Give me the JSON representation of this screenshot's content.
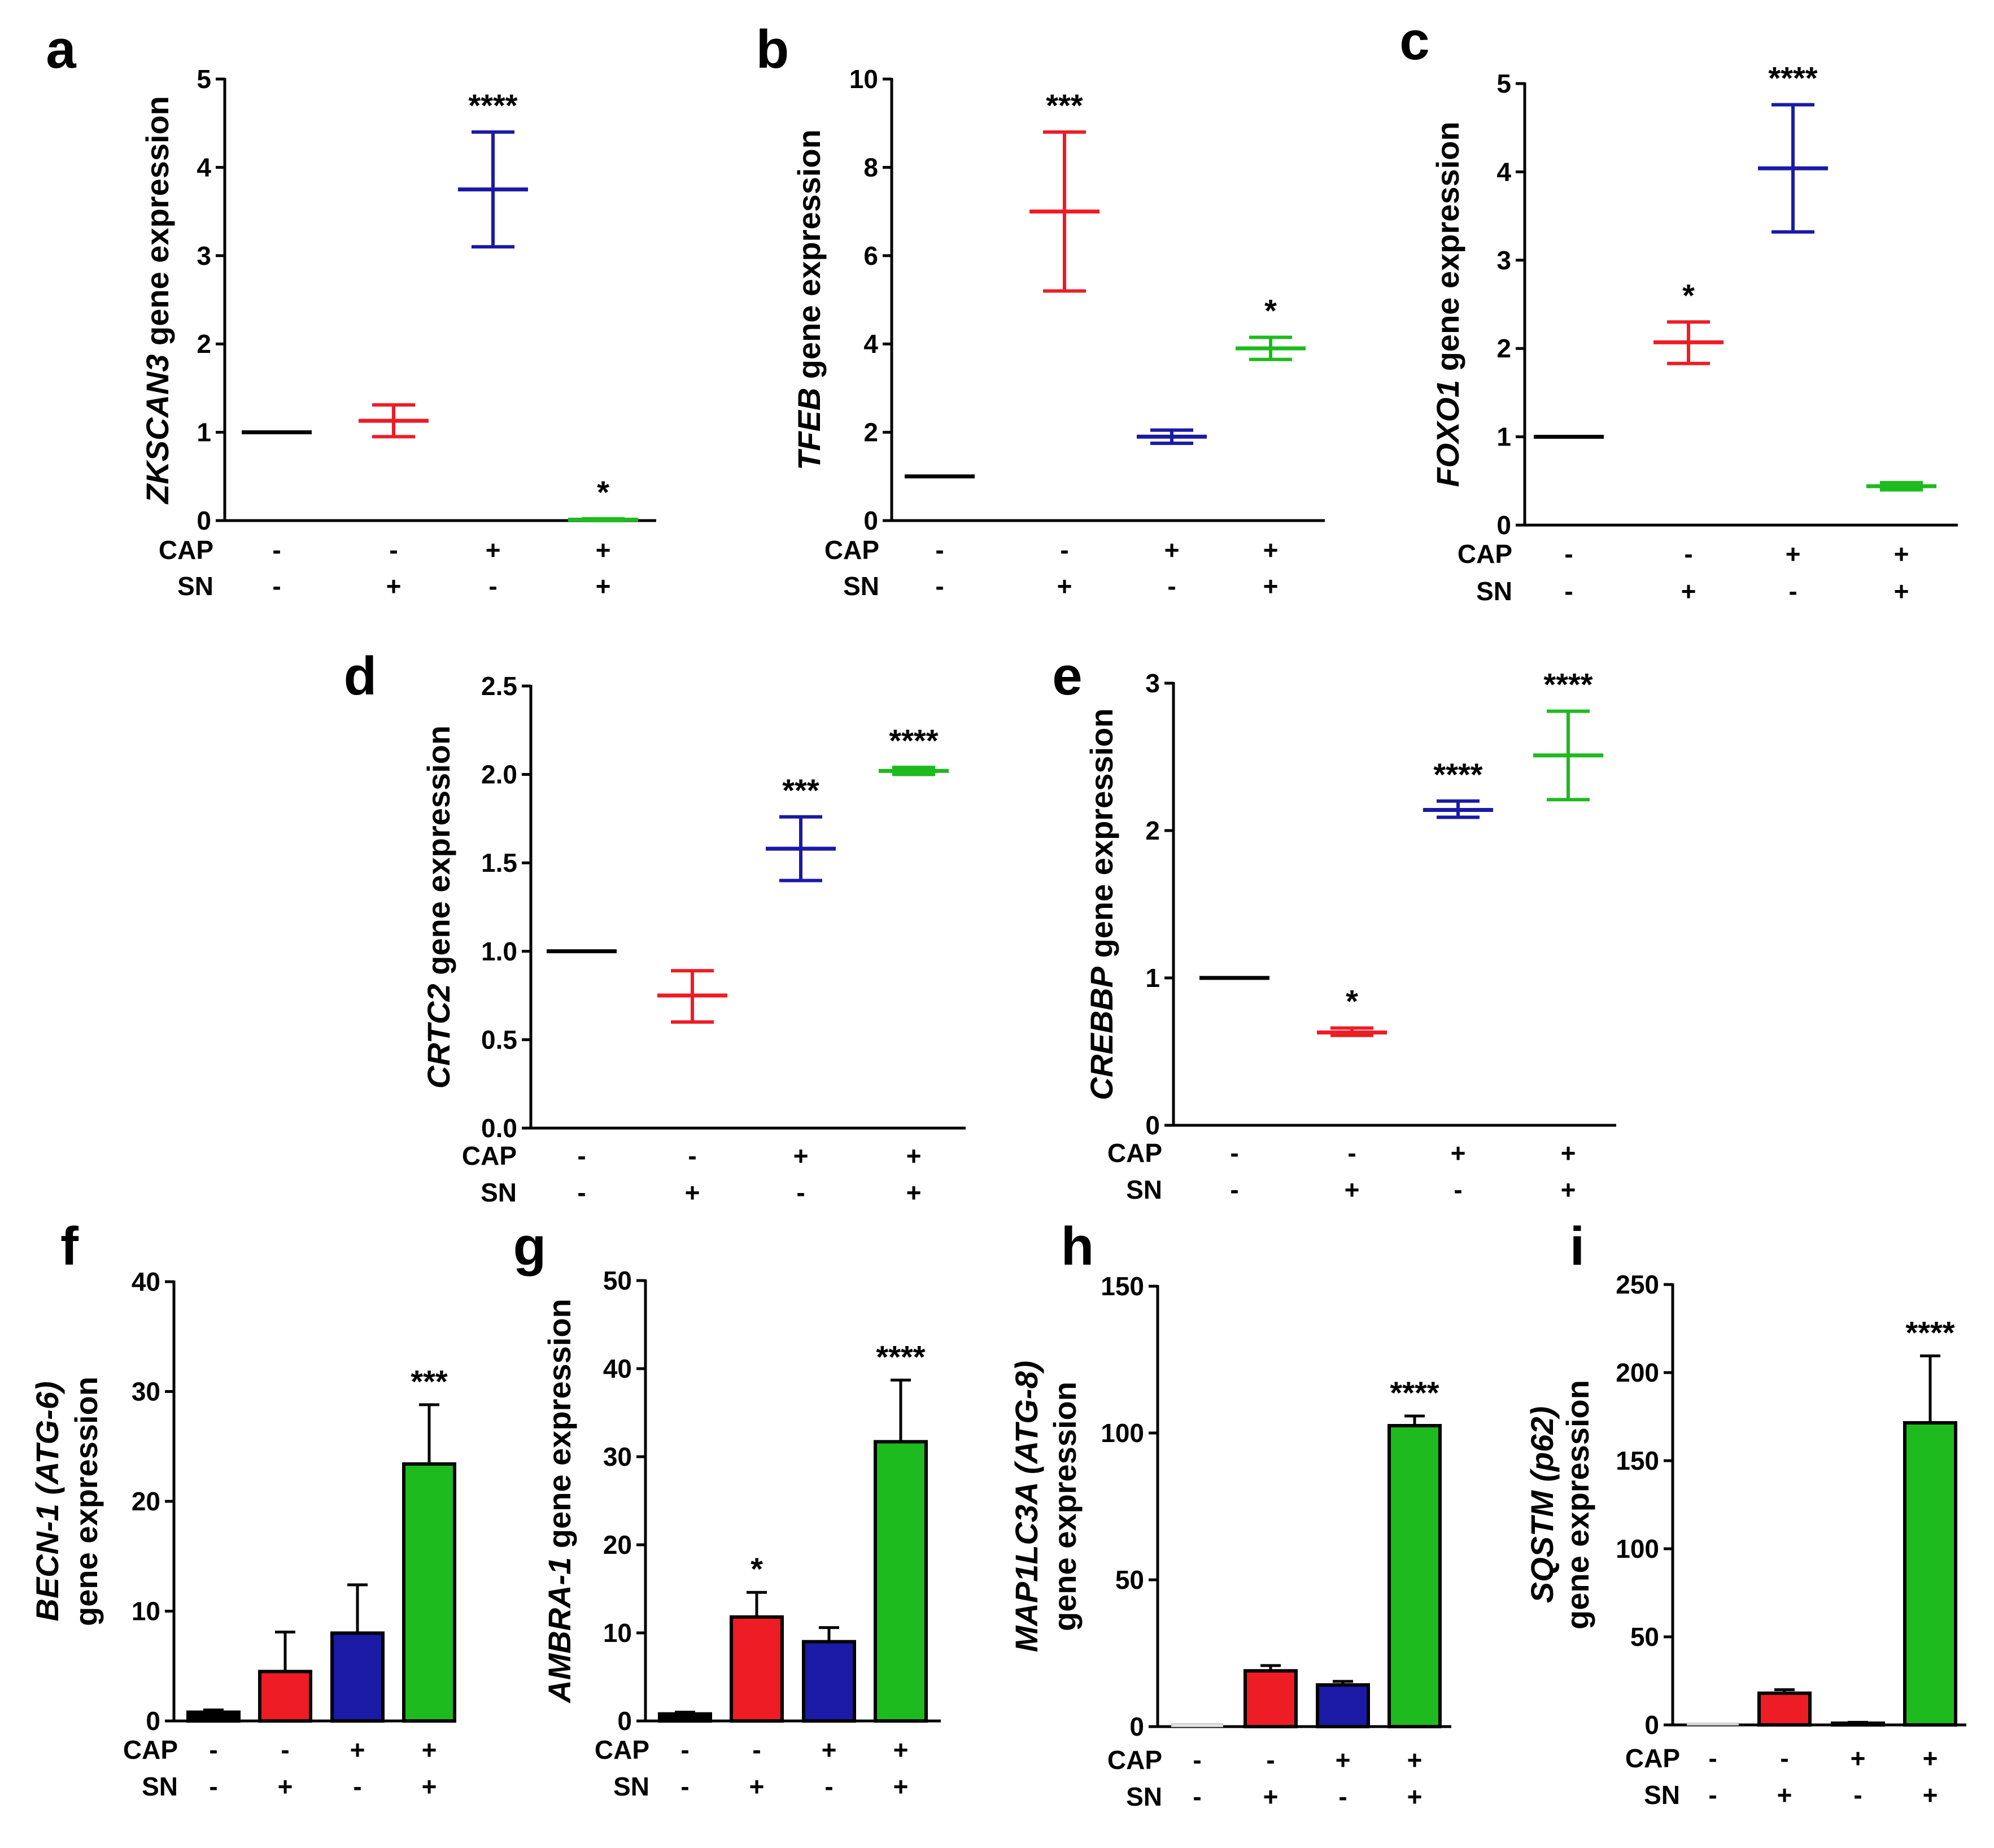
{
  "colors": {
    "black": "#000000",
    "red": "#ee1c25",
    "blue": "#1a1aa6",
    "green": "#1dbb1d",
    "control_bar": "#e6e6e6"
  },
  "condition_rows": [
    "CAP",
    "SN"
  ],
  "conditions": [
    [
      "-",
      "-"
    ],
    [
      "-",
      "+"
    ],
    [
      "+",
      "-"
    ],
    [
      "+",
      "+"
    ]
  ],
  "chart_data": [
    {
      "id": "a",
      "type": "scatter",
      "label": "a",
      "ylabel": {
        "italic": "ZKSCAN3",
        "rest": " gene expression"
      },
      "ylim": [
        0,
        5
      ],
      "ticks": [
        "0",
        "1",
        "2",
        "3",
        "4",
        "5"
      ],
      "groups": [
        "CAP- SN-",
        "CAP- SN+",
        "CAP+ SN-",
        "CAP+ SN+"
      ],
      "series": [
        {
          "mean": 1.0,
          "low": 1.0,
          "high": 1.0,
          "color": "black",
          "sig": ""
        },
        {
          "mean": 1.13,
          "low": 0.95,
          "high": 1.31,
          "color": "red",
          "sig": ""
        },
        {
          "mean": 3.75,
          "low": 3.1,
          "high": 4.4,
          "color": "blue",
          "sig": "****"
        },
        {
          "mean": 0.01,
          "low": 0.0,
          "high": 0.02,
          "color": "green",
          "sig": "*"
        }
      ]
    },
    {
      "id": "b",
      "type": "scatter",
      "label": "b",
      "ylabel": {
        "italic": "TFEB",
        "rest": " gene expression"
      },
      "ylim": [
        0,
        10
      ],
      "ticks": [
        "0",
        "2",
        "4",
        "6",
        "8",
        "10"
      ],
      "groups": [
        "CAP- SN-",
        "CAP- SN+",
        "CAP+ SN-",
        "CAP+ SN+"
      ],
      "series": [
        {
          "mean": 1.0,
          "low": 1.0,
          "high": 1.0,
          "color": "black",
          "sig": ""
        },
        {
          "mean": 7.0,
          "low": 5.2,
          "high": 8.8,
          "color": "red",
          "sig": "***"
        },
        {
          "mean": 1.9,
          "low": 1.75,
          "high": 2.05,
          "color": "blue",
          "sig": ""
        },
        {
          "mean": 3.9,
          "low": 3.65,
          "high": 4.15,
          "color": "green",
          "sig": "*"
        }
      ]
    },
    {
      "id": "c",
      "type": "scatter",
      "label": "c",
      "ylabel": {
        "italic": "FOXO1",
        "rest": " gene expression"
      },
      "ylim": [
        0,
        5
      ],
      "ticks": [
        "0",
        "1",
        "2",
        "3",
        "4",
        "5"
      ],
      "groups": [
        "CAP- SN-",
        "CAP- SN+",
        "CAP+ SN-",
        "CAP+ SN+"
      ],
      "series": [
        {
          "mean": 1.0,
          "low": 1.0,
          "high": 1.0,
          "color": "black",
          "sig": ""
        },
        {
          "mean": 2.07,
          "low": 1.83,
          "high": 2.3,
          "color": "red",
          "sig": "*"
        },
        {
          "mean": 4.04,
          "low": 3.32,
          "high": 4.76,
          "color": "blue",
          "sig": "****"
        },
        {
          "mean": 0.44,
          "low": 0.4,
          "high": 0.48,
          "color": "green",
          "sig": ""
        }
      ]
    },
    {
      "id": "d",
      "type": "scatter",
      "label": "d",
      "ylabel": {
        "italic": "CRTC2",
        "rest": " gene expression"
      },
      "ylim": [
        0,
        2.5
      ],
      "ticks": [
        "0.0",
        "0.5",
        "1.0",
        "1.5",
        "2.0",
        "2.5"
      ],
      "groups": [
        "CAP- SN-",
        "CAP- SN+",
        "CAP+ SN-",
        "CAP+ SN+"
      ],
      "series": [
        {
          "mean": 1.0,
          "low": 1.0,
          "high": 1.0,
          "color": "black",
          "sig": ""
        },
        {
          "mean": 0.75,
          "low": 0.6,
          "high": 0.89,
          "color": "red",
          "sig": ""
        },
        {
          "mean": 1.58,
          "low": 1.4,
          "high": 1.76,
          "color": "blue",
          "sig": "***"
        },
        {
          "mean": 2.02,
          "low": 2.0,
          "high": 2.04,
          "color": "green",
          "sig": "****"
        }
      ]
    },
    {
      "id": "e",
      "type": "scatter",
      "label": "e",
      "ylabel": {
        "italic": "CREBBP",
        "rest": " gene expression"
      },
      "ylim": [
        0,
        3
      ],
      "ticks": [
        "0",
        "1",
        "2",
        "3"
      ],
      "groups": [
        "CAP- SN-",
        "CAP- SN+",
        "CAP+ SN-",
        "CAP+ SN+"
      ],
      "series": [
        {
          "mean": 1.0,
          "low": 1.0,
          "high": 1.0,
          "color": "black",
          "sig": ""
        },
        {
          "mean": 0.63,
          "low": 0.61,
          "high": 0.66,
          "color": "red",
          "sig": "*"
        },
        {
          "mean": 2.14,
          "low": 2.09,
          "high": 2.2,
          "color": "blue",
          "sig": "****"
        },
        {
          "mean": 2.51,
          "low": 2.21,
          "high": 2.81,
          "color": "green",
          "sig": "****"
        }
      ]
    },
    {
      "id": "f",
      "type": "bar",
      "label": "f",
      "ylabel": {
        "line1_italic": "BECN-1 (ATG-6)",
        "line2": "gene expression"
      },
      "ylim": [
        0,
        40
      ],
      "ticks": [
        "0",
        "10",
        "20",
        "30",
        "40"
      ],
      "groups": [
        "CAP- SN-",
        "CAP- SN+",
        "CAP+ SN-",
        "CAP+ SN+"
      ],
      "series": [
        {
          "mean": 0.8,
          "err": 0.2,
          "color": "black",
          "sig": ""
        },
        {
          "mean": 4.5,
          "err": 3.6,
          "color": "red",
          "sig": ""
        },
        {
          "mean": 8.0,
          "err": 4.4,
          "color": "blue",
          "sig": ""
        },
        {
          "mean": 23.4,
          "err": 5.4,
          "color": "green",
          "sig": "***"
        }
      ]
    },
    {
      "id": "g",
      "type": "bar",
      "label": "g",
      "ylabel": {
        "italic": "AMBRA-1",
        "rest": " gene expression"
      },
      "ylim": [
        0,
        50
      ],
      "ticks": [
        "0",
        "10",
        "20",
        "30",
        "40",
        "50"
      ],
      "groups": [
        "CAP- SN-",
        "CAP- SN+",
        "CAP+ SN-",
        "CAP+ SN+"
      ],
      "series": [
        {
          "mean": 0.8,
          "err": 0.2,
          "color": "black",
          "sig": ""
        },
        {
          "mean": 11.8,
          "err": 2.8,
          "color": "red",
          "sig": "*"
        },
        {
          "mean": 9.0,
          "err": 1.6,
          "color": "blue",
          "sig": ""
        },
        {
          "mean": 31.7,
          "err": 7.0,
          "color": "green",
          "sig": "****"
        }
      ]
    },
    {
      "id": "h",
      "type": "bar",
      "label": "h",
      "ylabel": {
        "line1_italic": "MAP1LC3A (ATG-8)",
        "line2": "gene expression"
      },
      "ylim": [
        0,
        150
      ],
      "ticks": [
        "0",
        "50",
        "100",
        "150"
      ],
      "groups": [
        "CAP- SN-",
        "CAP- SN+",
        "CAP+ SN-",
        "CAP+ SN+"
      ],
      "series": [
        {
          "mean": 1.0,
          "err": 0.0,
          "color": "control_bar",
          "sig": ""
        },
        {
          "mean": 19.0,
          "err": 1.8,
          "color": "red",
          "sig": ""
        },
        {
          "mean": 14.2,
          "err": 1.2,
          "color": "blue",
          "sig": ""
        },
        {
          "mean": 102.5,
          "err": 3.3,
          "color": "green",
          "sig": "****"
        }
      ]
    },
    {
      "id": "i",
      "type": "bar",
      "label": "i",
      "ylabel": {
        "line1_italic": "SQSTM (p62)",
        "line2": "gene expression"
      },
      "ylim": [
        0,
        250
      ],
      "ticks": [
        "0",
        "50",
        "100",
        "150",
        "200",
        "250"
      ],
      "groups": [
        "CAP- SN-",
        "CAP- SN+",
        "CAP+ SN-",
        "CAP+ SN+"
      ],
      "series": [
        {
          "mean": 1.0,
          "err": 0.0,
          "color": "control_bar",
          "sig": ""
        },
        {
          "mean": 18.0,
          "err": 2.0,
          "color": "red",
          "sig": ""
        },
        {
          "mean": 1.0,
          "err": 0.5,
          "color": "black",
          "sig": ""
        },
        {
          "mean": 171.5,
          "err": 38.0,
          "color": "green",
          "sig": "****"
        }
      ]
    }
  ]
}
